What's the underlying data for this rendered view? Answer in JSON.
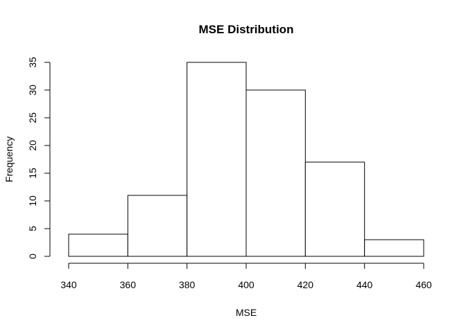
{
  "chart_data": {
    "type": "bar",
    "subtype": "histogram",
    "title": "MSE Distribution",
    "xlabel": "MSE",
    "ylabel": "Frequency",
    "bins": [
      {
        "from": 340,
        "to": 360,
        "count": 4
      },
      {
        "from": 360,
        "to": 380,
        "count": 11
      },
      {
        "from": 380,
        "to": 400,
        "count": 35
      },
      {
        "from": 400,
        "to": 420,
        "count": 30
      },
      {
        "from": 420,
        "to": 440,
        "count": 17
      },
      {
        "from": 440,
        "to": 460,
        "count": 3
      }
    ],
    "xlim": [
      340,
      460
    ],
    "ylim": [
      0,
      35
    ],
    "x_ticks": [
      "340",
      "360",
      "380",
      "400",
      "420",
      "440",
      "460"
    ],
    "y_ticks": [
      "0",
      "5",
      "10",
      "15",
      "20",
      "25",
      "30",
      "35"
    ],
    "grid": false,
    "legend": "none",
    "bar_fill": "#ffffff",
    "bar_stroke": "#000000"
  }
}
